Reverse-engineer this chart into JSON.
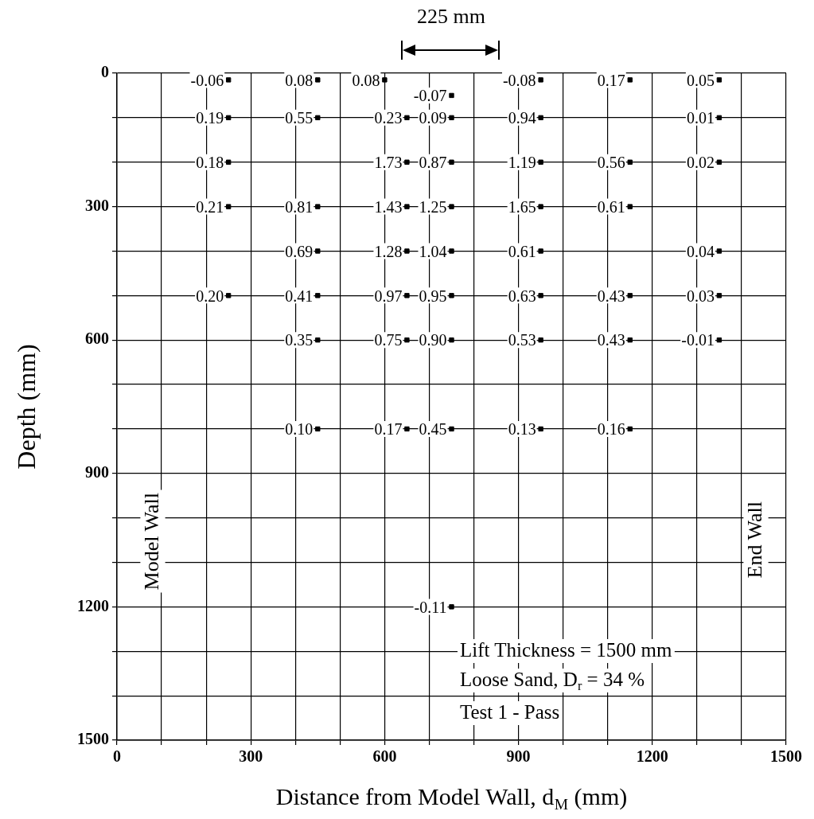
{
  "chart_data": {
    "type": "scatter",
    "xlabel": "Distance from Model Wall, d$_{M}$ (mm)",
    "ylabel": "Depth (mm)",
    "x": [
      250,
      450,
      600,
      750,
      950,
      1150,
      1350,
      250,
      450,
      650,
      750,
      950,
      1350,
      250,
      650,
      750,
      950,
      1150,
      1350,
      250,
      450,
      650,
      750,
      950,
      1150,
      450,
      650,
      750,
      950,
      1350,
      250,
      450,
      650,
      750,
      950,
      1150,
      1350,
      450,
      650,
      750,
      950,
      1150,
      1350,
      450,
      650,
      750,
      950,
      1150,
      750
    ],
    "values": [
      15,
      15,
      15,
      50,
      15,
      15,
      15,
      100,
      100,
      100,
      100,
      100,
      100,
      200,
      200,
      200,
      200,
      200,
      200,
      300,
      300,
      300,
      300,
      300,
      300,
      400,
      400,
      400,
      400,
      400,
      500,
      500,
      500,
      500,
      500,
      500,
      500,
      600,
      600,
      600,
      600,
      600,
      600,
      800,
      800,
      800,
      800,
      800,
      1200
    ],
    "color": "#000000",
    "marker": "square",
    "grid": true,
    "xlim": [
      0,
      1500
    ],
    "xticks": [
      0,
      {
        "value": 100,
        "label": null
      },
      {
        "value": 200,
        "label": null
      },
      300,
      {
        "value": 400,
        "label": null
      },
      {
        "value": 500,
        "label": null
      },
      600,
      {
        "value": 700,
        "label": null
      },
      {
        "value": 800,
        "label": null
      },
      900,
      {
        "value": 1000,
        "label": null
      },
      {
        "value": 1100,
        "label": null
      },
      1200,
      {
        "value": 1300,
        "label": null
      },
      {
        "value": 1400,
        "label": null
      },
      1500
    ],
    "ylim": [
      1500,
      0
    ],
    "yticks": [
      0,
      {
        "value": 100,
        "label": null
      },
      {
        "value": 200,
        "label": null
      },
      300,
      {
        "value": 400,
        "label": null
      },
      {
        "value": 500,
        "label": null
      },
      600,
      {
        "value": 700,
        "label": null
      },
      {
        "value": 800,
        "label": null
      },
      900,
      {
        "value": 1000,
        "label": null
      },
      {
        "value": 1100,
        "label": null
      },
      1200,
      {
        "value": 1300,
        "label": null
      },
      {
        "value": 1400,
        "label": null
      },
      1500
    ],
    "annotations": [
      "225 mm",
      "Model Wall",
      "End Wall",
      "Lift Thickness = 1500 mm",
      "Loose Sand, D$_{r}$ = 34 %",
      "Test 1 - Pass",
      {
        "text": "-0.06",
        "x": 250,
        "y": 15
      },
      {
        "text": "0.08",
        "x": 450,
        "y": 15
      },
      {
        "text": "0.08",
        "x": 600,
        "y": 15
      },
      {
        "text": "-0.07",
        "x": 750,
        "y": 50
      },
      {
        "text": "-0.08",
        "x": 950,
        "y": 15
      },
      {
        "text": "0.17",
        "x": 1150,
        "y": 15
      },
      {
        "text": "0.05",
        "x": 1350,
        "y": 15
      },
      {
        "text": "0.19",
        "x": 250,
        "y": 100
      },
      {
        "text": "0.55",
        "x": 450,
        "y": 100
      },
      {
        "text": "0.23",
        "x": 650,
        "y": 100
      },
      {
        "text": "0.09",
        "x": 750,
        "y": 100
      },
      {
        "text": "0.94",
        "x": 950,
        "y": 100
      },
      {
        "text": "0.01",
        "x": 1350,
        "y": 100
      },
      {
        "text": "0.18",
        "x": 250,
        "y": 200
      },
      {
        "text": "1.73",
        "x": 650,
        "y": 200
      },
      {
        "text": "0.87",
        "x": 750,
        "y": 200
      },
      {
        "text": "1.19",
        "x": 950,
        "y": 200
      },
      {
        "text": "0.56",
        "x": 1150,
        "y": 200
      },
      {
        "text": "0.02",
        "x": 1350,
        "y": 200
      },
      {
        "text": "0.21",
        "x": 250,
        "y": 300
      },
      {
        "text": "0.81",
        "x": 450,
        "y": 300
      },
      {
        "text": "1.43",
        "x": 650,
        "y": 300
      },
      {
        "text": "1.25",
        "x": 750,
        "y": 300
      },
      {
        "text": "1.65",
        "x": 950,
        "y": 300
      },
      {
        "text": "0.61",
        "x": 1150,
        "y": 300
      },
      {
        "text": "0.69",
        "x": 450,
        "y": 400
      },
      {
        "text": "1.28",
        "x": 650,
        "y": 400
      },
      {
        "text": "1.04",
        "x": 750,
        "y": 400
      },
      {
        "text": "0.61",
        "x": 950,
        "y": 400
      },
      {
        "text": "0.04",
        "x": 1350,
        "y": 400
      },
      {
        "text": "0.20",
        "x": 250,
        "y": 500
      },
      {
        "text": "0.41",
        "x": 450,
        "y": 500
      },
      {
        "text": "0.97",
        "x": 650,
        "y": 500
      },
      {
        "text": "0.95",
        "x": 750,
        "y": 500
      },
      {
        "text": "0.63",
        "x": 950,
        "y": 500
      },
      {
        "text": "0.43",
        "x": 1150,
        "y": 500
      },
      {
        "text": "0.03",
        "x": 1350,
        "y": 500
      },
      {
        "text": "0.35",
        "x": 450,
        "y": 600
      },
      {
        "text": "0.75",
        "x": 650,
        "y": 600
      },
      {
        "text": "0.90",
        "x": 750,
        "y": 600
      },
      {
        "text": "0.53",
        "x": 950,
        "y": 600
      },
      {
        "text": "0.43",
        "x": 1150,
        "y": 600
      },
      {
        "text": "-0.01",
        "x": 1350,
        "y": 600
      },
      {
        "text": "0.10",
        "x": 450,
        "y": 800
      },
      {
        "text": "0.17",
        "x": 650,
        "y": 800
      },
      {
        "text": "0.45",
        "x": 750,
        "y": 800
      },
      {
        "text": "0.13",
        "x": 950,
        "y": 800
      },
      {
        "text": "0.16",
        "x": 1150,
        "y": 800
      },
      {
        "text": "-0.11",
        "x": 750,
        "y": 1200
      }
    ]
  }
}
